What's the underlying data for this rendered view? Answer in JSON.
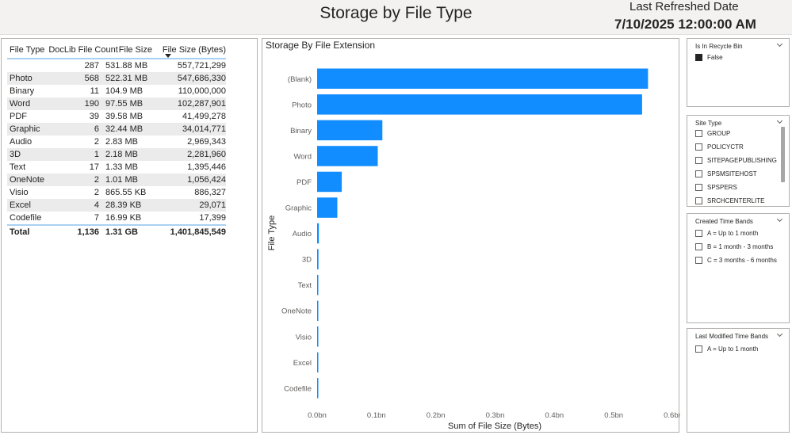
{
  "header": {
    "title": "Storage by File Type",
    "refresh_label": "Last Refreshed Date",
    "refresh_value": "7/10/2025 12:00:00 AM"
  },
  "table": {
    "columns": [
      "File Type",
      "DocLib File Count",
      "File Size",
      "File Size (Bytes)"
    ],
    "sorted_column": "File Size (Bytes)",
    "rows": [
      {
        "type": "",
        "count": "287",
        "size": "531.88 MB",
        "bytes": "557,721,299"
      },
      {
        "type": "Photo",
        "count": "568",
        "size": "522.31 MB",
        "bytes": "547,686,330"
      },
      {
        "type": "Binary",
        "count": "11",
        "size": "104.9 MB",
        "bytes": "110,000,000"
      },
      {
        "type": "Word",
        "count": "190",
        "size": "97.55 MB",
        "bytes": "102,287,901"
      },
      {
        "type": "PDF",
        "count": "39",
        "size": "39.58 MB",
        "bytes": "41,499,278"
      },
      {
        "type": "Graphic",
        "count": "6",
        "size": "32.44 MB",
        "bytes": "34,014,771"
      },
      {
        "type": "Audio",
        "count": "2",
        "size": "2.83 MB",
        "bytes": "2,969,343"
      },
      {
        "type": "3D",
        "count": "1",
        "size": "2.18 MB",
        "bytes": "2,281,960"
      },
      {
        "type": "Text",
        "count": "17",
        "size": "1.33 MB",
        "bytes": "1,395,446"
      },
      {
        "type": "OneNote",
        "count": "2",
        "size": "1.01 MB",
        "bytes": "1,056,424"
      },
      {
        "type": "Visio",
        "count": "2",
        "size": "865.55 KB",
        "bytes": "886,327"
      },
      {
        "type": "Excel",
        "count": "4",
        "size": "28.39 KB",
        "bytes": "29,071"
      },
      {
        "type": "Codefile",
        "count": "7",
        "size": "16.99 KB",
        "bytes": "17,399"
      }
    ],
    "total": {
      "type": "Total",
      "count": "1,136",
      "size": "1.31 GB",
      "bytes": "1,401,845,549"
    }
  },
  "chart_data": {
    "type": "bar",
    "orientation": "horizontal",
    "title": "Storage By File Extension",
    "xlabel": "Sum of File Size (Bytes)",
    "ylabel": "File Type",
    "categories": [
      "(Blank)",
      "Photo",
      "Binary",
      "Word",
      "PDF",
      "Graphic",
      "Audio",
      "3D",
      "Text",
      "OneNote",
      "Visio",
      "Excel",
      "Codefile"
    ],
    "values": [
      557721299,
      547686330,
      110000000,
      102287901,
      41499278,
      34014771,
      2969343,
      2281960,
      1395446,
      1056424,
      886327,
      29071,
      17399
    ],
    "xlim": [
      0,
      600000000
    ],
    "xticks": [
      0,
      100000000,
      200000000,
      300000000,
      400000000,
      500000000,
      600000000
    ],
    "xtick_labels": [
      "0.0bn",
      "0.1bn",
      "0.2bn",
      "0.3bn",
      "0.4bn",
      "0.5bn",
      "0.6bn"
    ],
    "bar_color": "#118dff",
    "grid": false,
    "legend": "none"
  },
  "slicers": {
    "recycle_bin": {
      "title": "Is In Recycle Bin",
      "options": [
        {
          "label": "False",
          "checked": true
        }
      ]
    },
    "site_type": {
      "title": "Site Type",
      "options": [
        {
          "label": "GROUP",
          "checked": false
        },
        {
          "label": "POLICYCTR",
          "checked": false
        },
        {
          "label": "SITEPAGEPUBLISHING",
          "checked": false
        },
        {
          "label": "SPSMSITEHOST",
          "checked": false
        },
        {
          "label": "SPSPERS",
          "checked": false
        },
        {
          "label": "SRCHCENTERLITE",
          "checked": false
        }
      ]
    },
    "created_bands": {
      "title": "Created Time Bands",
      "options": [
        {
          "label": "A = Up to 1 month",
          "checked": false
        },
        {
          "label": "B = 1 month - 3 months",
          "checked": false
        },
        {
          "label": "C = 3 months - 6 months",
          "checked": false
        }
      ]
    },
    "modified_bands": {
      "title": "Last Modified Time Bands",
      "options": [
        {
          "label": "A = Up to 1 month",
          "checked": false
        }
      ]
    }
  }
}
